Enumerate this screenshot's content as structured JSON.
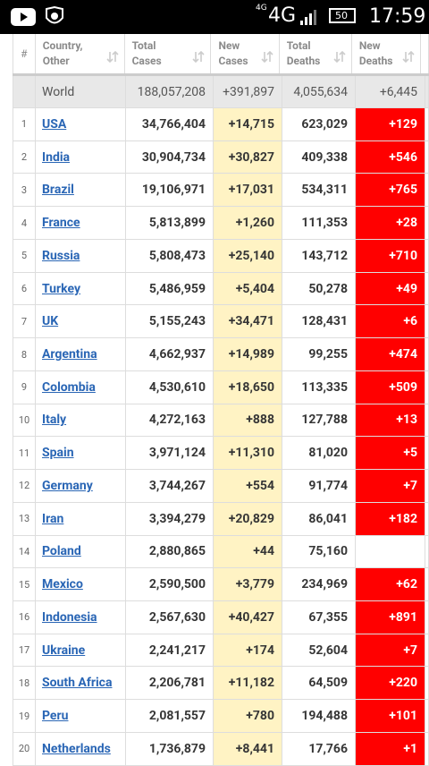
{
  "status_bar": {
    "network_small": "4G",
    "network": "4G",
    "battery": "50",
    "time": "17:59"
  },
  "table": {
    "header": [
      "#",
      "Country, Other",
      "Total Cases",
      "New Cases",
      "Total Deaths",
      "New Deaths"
    ],
    "world": [
      "World",
      "188,057,208",
      "+391,897",
      "4,055,634",
      "+6,445"
    ],
    "rows": [
      [
        "1",
        "USA",
        "34,766,404",
        "+14,715",
        "623,029",
        "+129"
      ],
      [
        "2",
        "India",
        "30,904,734",
        "+30,827",
        "409,338",
        "+546"
      ],
      [
        "3",
        "Brazil",
        "19,106,971",
        "+17,031",
        "534,311",
        "+765"
      ],
      [
        "4",
        "France",
        "5,813,899",
        "+1,260",
        "111,353",
        "+28"
      ],
      [
        "5",
        "Russia",
        "5,808,473",
        "+25,140",
        "143,712",
        "+710"
      ],
      [
        "6",
        "Turkey",
        "5,486,959",
        "+5,404",
        "50,278",
        "+49"
      ],
      [
        "7",
        "UK",
        "5,155,243",
        "+34,471",
        "128,431",
        "+6"
      ],
      [
        "8",
        "Argentina",
        "4,662,937",
        "+14,989",
        "99,255",
        "+474"
      ],
      [
        "9",
        "Colombia",
        "4,530,610",
        "+18,650",
        "113,335",
        "+509"
      ],
      [
        "10",
        "Italy",
        "4,272,163",
        "+888",
        "127,788",
        "+13"
      ],
      [
        "11",
        "Spain",
        "3,971,124",
        "+11,310",
        "81,020",
        "+5"
      ],
      [
        "12",
        "Germany",
        "3,744,267",
        "+554",
        "91,774",
        "+7"
      ],
      [
        "13",
        "Iran",
        "3,394,279",
        "+20,829",
        "86,041",
        "+182"
      ],
      [
        "14",
        "Poland",
        "2,880,865",
        "+44",
        "75,160",
        null
      ],
      [
        "15",
        "Mexico",
        "2,590,500",
        "+3,779",
        "234,969",
        "+62"
      ],
      [
        "16",
        "Indonesia",
        "2,567,630",
        "+40,427",
        "67,355",
        "+891"
      ],
      [
        "17",
        "Ukraine",
        "2,241,217",
        "+174",
        "52,604",
        "+7"
      ],
      [
        "18",
        "South Africa",
        "2,206,781",
        "+11,182",
        "64,509",
        "+220"
      ],
      [
        "19",
        "Peru",
        "2,081,557",
        "+780",
        "194,488",
        "+101"
      ],
      [
        "20",
        "Netherlands",
        "1,736,879",
        "+8,441",
        "17,766",
        "+1"
      ]
    ]
  }
}
